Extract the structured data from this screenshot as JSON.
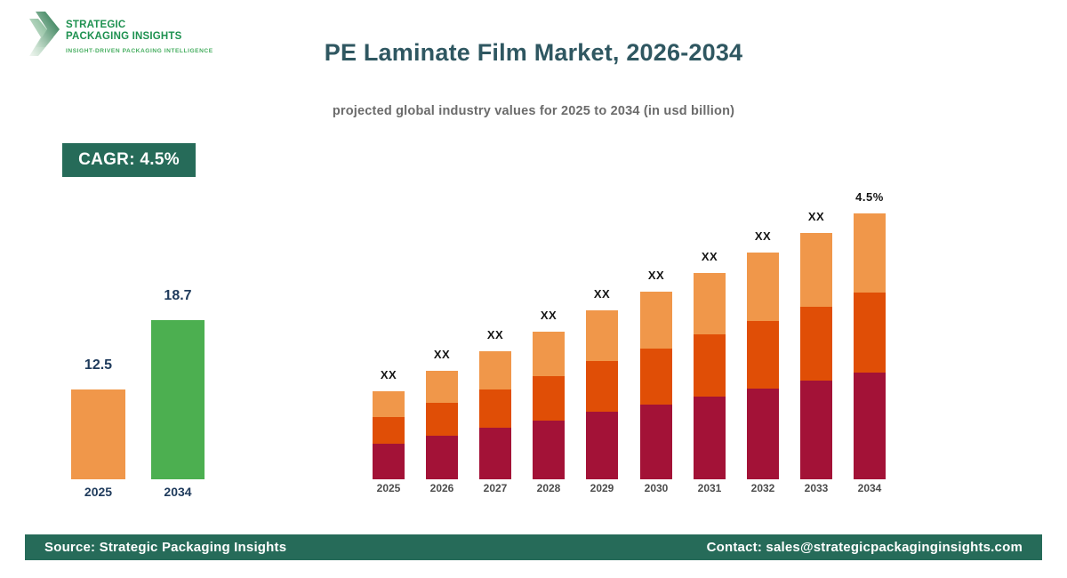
{
  "logo": {
    "line1": "STRATEGIC",
    "line2": "PACKAGING INSIGHTS",
    "tagline": "INSIGHT-DRIVEN PACKAGING INTELLIGENCE"
  },
  "header": {
    "title": "PE Laminate Film Market, 2026-2034",
    "subtitle": "projected global industry values for 2025 to 2034 (in usd billion)"
  },
  "badge": {
    "label": "CAGR: 4.5%"
  },
  "footer": {
    "source": "Source: Strategic Packaging Insights",
    "contact": "Contact: sales@strategicpackaginginsights.com"
  },
  "colors": {
    "title_teal": "#2F5761",
    "navy_label": "#1F3B5C",
    "badge_green": "#266B59",
    "footer_green": "#266B59",
    "logo_green": "#1E9150",
    "logo_light_green": "#45AD5F",
    "orange": "#F0974A",
    "dark_orange": "#E04E06",
    "maroon": "#A31237",
    "green": "#4CAF50"
  },
  "chart_data": [
    {
      "type": "bar",
      "name": "market-size-comparison",
      "title": "",
      "categories": [
        "2025",
        "2034"
      ],
      "values": [
        12.5,
        18.7
      ],
      "unit": "usd billion",
      "bar_colors": [
        "#F0974A",
        "#4CAF50"
      ],
      "value_labels": [
        "12.5",
        "18.7"
      ],
      "grid": false,
      "axes_shown": false
    },
    {
      "type": "bar",
      "subtype": "stacked",
      "name": "yearly-projection",
      "title": "",
      "categories": [
        "2025",
        "2026",
        "2027",
        "2028",
        "2029",
        "2030",
        "2031",
        "2032",
        "2033",
        "2034"
      ],
      "bar_labels": [
        "XX",
        "XX",
        "XX",
        "XX",
        "XX",
        "XX",
        "XX",
        "XX",
        "XX",
        "4.5%"
      ],
      "note": "numeric values masked as XX on chart; series values are drawn segment heights in px",
      "series": [
        {
          "name": "segment-bottom",
          "color": "#A31237",
          "values": [
            40,
            49,
            58,
            66,
            76,
            84,
            93,
            102,
            111,
            120
          ]
        },
        {
          "name": "segment-middle",
          "color": "#E04E06",
          "values": [
            30,
            37,
            43,
            50,
            57,
            63,
            70,
            76,
            83,
            90
          ]
        },
        {
          "name": "segment-top",
          "color": "#F0974A",
          "values": [
            29,
            36,
            43,
            50,
            57,
            64,
            69,
            77,
            83,
            89
          ]
        }
      ],
      "grid": false,
      "axes_shown": false,
      "legend": "none"
    }
  ]
}
